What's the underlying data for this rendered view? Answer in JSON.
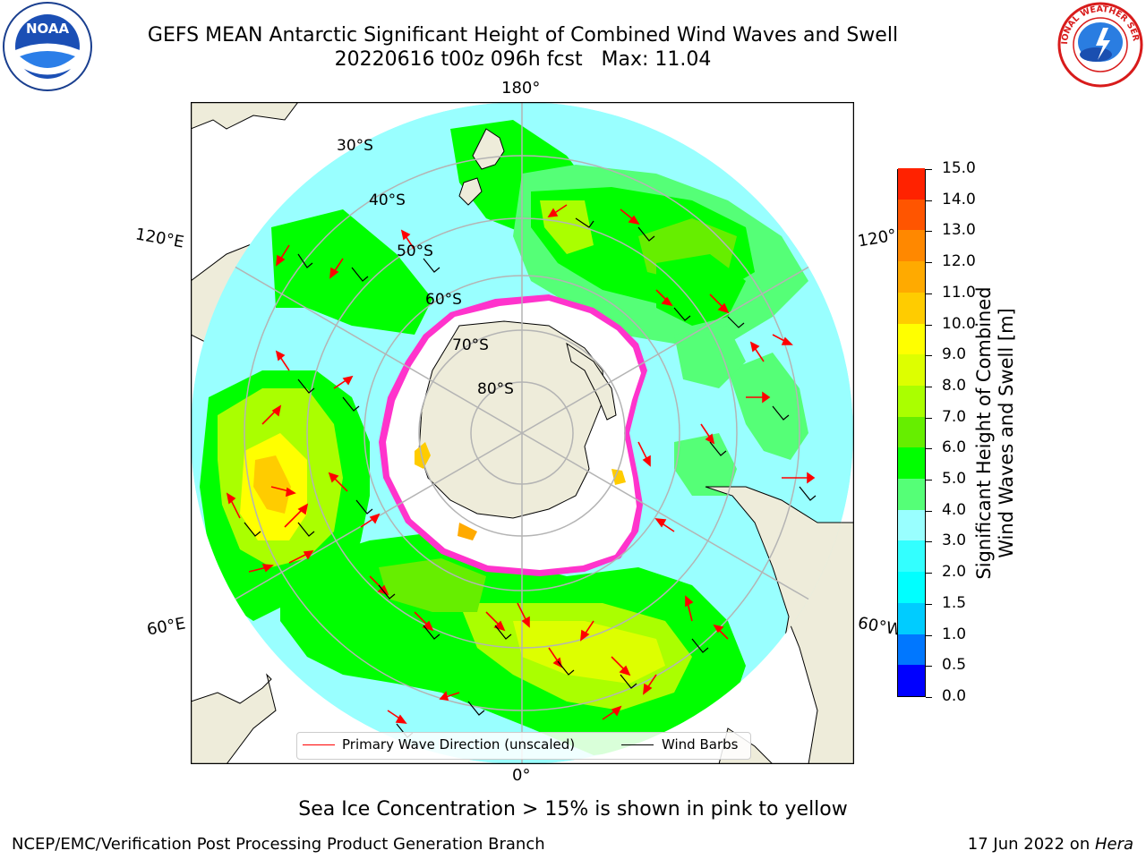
{
  "title": {
    "line1": "GEFS MEAN Antarctic Significant Height of Combined Wind Waves and Swell",
    "line2": "20220616 t00z 096h fcst   Max: 11.04"
  },
  "logos": {
    "left": "NOAA",
    "right": "NATIONAL WEATHER SERVICE"
  },
  "map": {
    "projection": "south-polar-stereographic",
    "lon_labels": {
      "top": "180°",
      "bottom": "0°",
      "upper_left": "120°E",
      "upper_right": "120°",
      "lower_left": "60°E",
      "lower_right": "60°W"
    },
    "lat_labels": [
      "30°S",
      "40°S",
      "50°S",
      "60°S",
      "70°S",
      "80°S"
    ],
    "colors": {
      "land": "#eeecda",
      "ocean_frame": "#ffffff",
      "graticule": "#b4b4b4",
      "ice_edge": "#ff33cc",
      "wave_arrow": "#ff0000"
    }
  },
  "legend": {
    "wave": "Primary Wave Direction (unscaled)",
    "wind": "Wind Barbs",
    "wave_color": "#ff0000",
    "wind_color": "#000000"
  },
  "colorbar": {
    "label_line1": "Significant Height of Combined",
    "label_line2": "Wind Waves and Swell [m]",
    "ticks": [
      "0.0",
      "0.5",
      "1.0",
      "1.5",
      "2.0",
      "3.0",
      "4.0",
      "5.0",
      "6.0",
      "7.0",
      "8.0",
      "9.0",
      "10.0",
      "11.0",
      "12.0",
      "13.0",
      "14.0",
      "15.0"
    ],
    "colors": [
      "#0000ff",
      "#0077ff",
      "#00ccff",
      "#00ffff",
      "#33ffff",
      "#99ffff",
      "#55ff77",
      "#00ff00",
      "#66ee00",
      "#aaff00",
      "#ddff00",
      "#ffff00",
      "#ffcc00",
      "#ffaa00",
      "#ff8800",
      "#ff5500",
      "#ff2200"
    ]
  },
  "sea_ice_note": "Sea Ice Concentration > 15% is shown in pink to yellow",
  "footer": {
    "left": "NCEP/EMC/Verification Post Processing Product Generation Branch",
    "right_date": "17 Jun 2022 on ",
    "right_host": "Hera"
  }
}
